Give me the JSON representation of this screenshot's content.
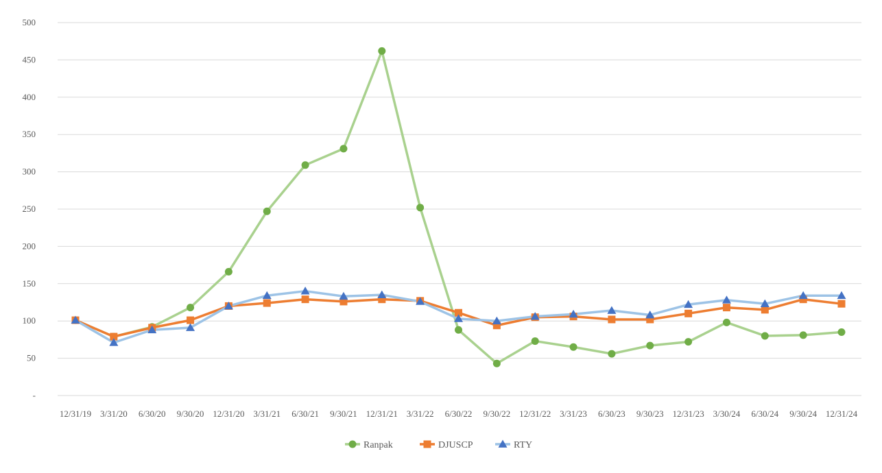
{
  "chart_data": {
    "type": "line",
    "title": "",
    "xlabel": "",
    "ylabel": "",
    "categories": [
      "12/31/19",
      "3/31/20",
      "6/30/20",
      "9/30/20",
      "12/31/20",
      "3/31/21",
      "6/30/21",
      "9/30/21",
      "12/31/21",
      "3/31/22",
      "6/30/22",
      "9/30/22",
      "12/31/22",
      "3/31/23",
      "6/30/23",
      "9/30/23",
      "12/31/23",
      "3/30/24",
      "6/30/24",
      "9/30/24",
      "12/31/24"
    ],
    "ylim": [
      0,
      500
    ],
    "yticks": [
      0,
      50,
      100,
      150,
      200,
      250,
      300,
      350,
      400,
      450,
      500
    ],
    "ytick_labels": [
      "-",
      "50",
      "100",
      "150",
      "200",
      "250",
      "300",
      "350",
      "400",
      "450",
      "500"
    ],
    "grid": true,
    "legend_position": "bottom",
    "series": [
      {
        "name": "Ranpak",
        "marker": "circle",
        "line_color": "#a9d18e",
        "marker_color": "#70ad47",
        "values": [
          101,
          79,
          92,
          118,
          166,
          247,
          309,
          331,
          462,
          252,
          88,
          43,
          73,
          65,
          56,
          67,
          72,
          98,
          80,
          81,
          85
        ]
      },
      {
        "name": "DJUSCP",
        "marker": "square",
        "line_color": "#ed7d31",
        "marker_color": "#ed7d31",
        "values": [
          101,
          79,
          91,
          101,
          120,
          124,
          129,
          126,
          129,
          127,
          111,
          94,
          105,
          106,
          102,
          102,
          110,
          118,
          115,
          129,
          123
        ]
      },
      {
        "name": "RTY",
        "marker": "triangle",
        "line_color": "#9dc3e6",
        "marker_color": "#4472c4",
        "values": [
          101,
          71,
          88,
          91,
          120,
          134,
          140,
          133,
          135,
          126,
          103,
          100,
          106,
          109,
          114,
          108,
          122,
          128,
          123,
          134,
          134
        ]
      }
    ]
  }
}
